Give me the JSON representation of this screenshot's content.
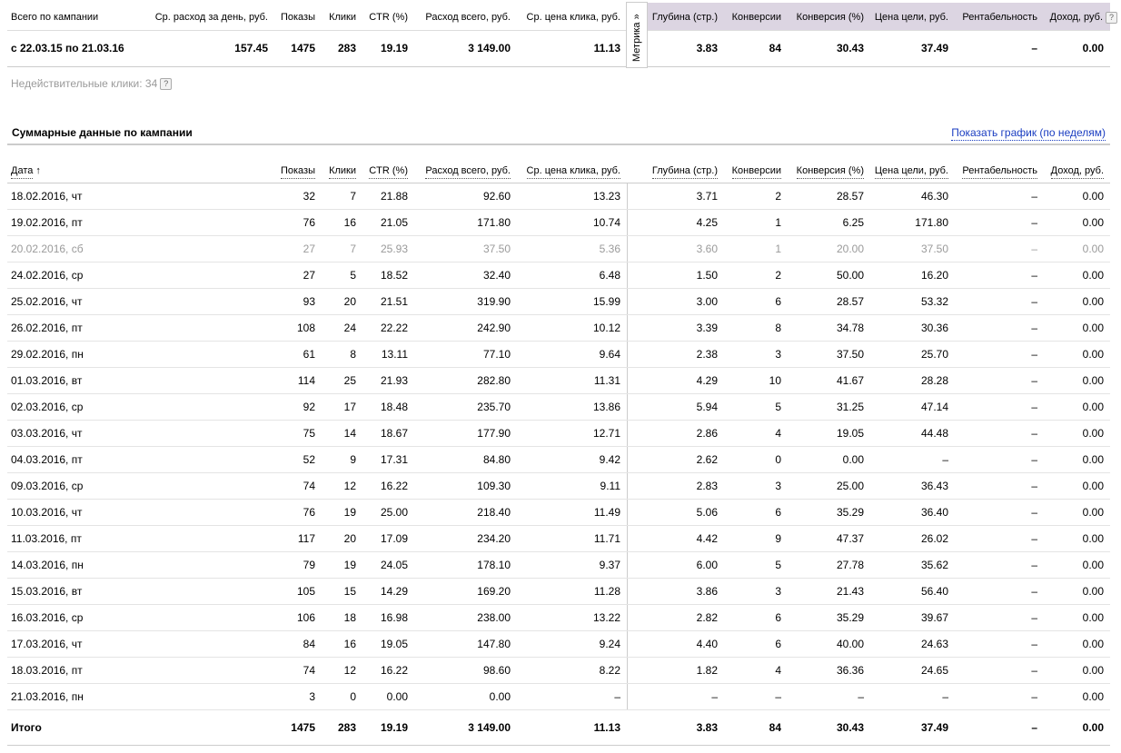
{
  "summary": {
    "headers": [
      "Всего по кампании",
      "Ср. расход за день, руб.",
      "Показы",
      "Клики",
      "CTR (%)",
      "Расход всего, руб.",
      "Ср. цена клика, руб.",
      "Глубина (стр.)",
      "Конверсии",
      "Конверсия (%)",
      "Цена цели, руб.",
      "Рентабельность",
      "Доход, руб."
    ],
    "help": "?",
    "metrika": "Метрика »",
    "row": [
      "с 22.03.15 по 21.03.16",
      "157.45",
      "1475",
      "283",
      "19.19",
      "3 149.00",
      "11.13",
      "3.83",
      "84",
      "30.43",
      "37.49",
      "–",
      "0.00"
    ],
    "invalid_clicks": "Недействительные клики: 34"
  },
  "details": {
    "title": "Суммарные данные по кампании",
    "chart_link": "Показать график (по неделям)",
    "sort_arrow": "↑",
    "headers": [
      "Дата",
      "Показы",
      "Клики",
      "CTR (%)",
      "Расход всего, руб.",
      "Ср. цена клика, руб.",
      "Глубина (стр.)",
      "Конверсии",
      "Конверсия (%)",
      "Цена цели, руб.",
      "Рентабельность",
      "Доход, руб."
    ],
    "rows": [
      {
        "cells": [
          "18.02.2016, чт",
          "32",
          "7",
          "21.88",
          "92.60",
          "13.23",
          "3.71",
          "2",
          "28.57",
          "46.30",
          "–",
          "0.00"
        ]
      },
      {
        "cells": [
          "19.02.2016, пт",
          "76",
          "16",
          "21.05",
          "171.80",
          "10.74",
          "4.25",
          "1",
          "6.25",
          "171.80",
          "–",
          "0.00"
        ]
      },
      {
        "cells": [
          "20.02.2016, сб",
          "27",
          "7",
          "25.93",
          "37.50",
          "5.36",
          "3.60",
          "1",
          "20.00",
          "37.50",
          "–",
          "0.00"
        ],
        "style": "muted"
      },
      {
        "cells": [
          "24.02.2016, ср",
          "27",
          "5",
          "18.52",
          "32.40",
          "6.48",
          "1.50",
          "2",
          "50.00",
          "16.20",
          "–",
          "0.00"
        ]
      },
      {
        "cells": [
          "25.02.2016, чт",
          "93",
          "20",
          "21.51",
          "319.90",
          "15.99",
          "3.00",
          "6",
          "28.57",
          "53.32",
          "–",
          "0.00"
        ]
      },
      {
        "cells": [
          "26.02.2016, пт",
          "108",
          "24",
          "22.22",
          "242.90",
          "10.12",
          "3.39",
          "8",
          "34.78",
          "30.36",
          "–",
          "0.00"
        ]
      },
      {
        "cells": [
          "29.02.2016, пн",
          "61",
          "8",
          "13.11",
          "77.10",
          "9.64",
          "2.38",
          "3",
          "37.50",
          "25.70",
          "–",
          "0.00"
        ]
      },
      {
        "cells": [
          "01.03.2016, вт",
          "114",
          "25",
          "21.93",
          "282.80",
          "11.31",
          "4.29",
          "10",
          "41.67",
          "28.28",
          "–",
          "0.00"
        ]
      },
      {
        "cells": [
          "02.03.2016, ср",
          "92",
          "17",
          "18.48",
          "235.70",
          "13.86",
          "5.94",
          "5",
          "31.25",
          "47.14",
          "–",
          "0.00"
        ]
      },
      {
        "cells": [
          "03.03.2016, чт",
          "75",
          "14",
          "18.67",
          "177.90",
          "12.71",
          "2.86",
          "4",
          "19.05",
          "44.48",
          "–",
          "0.00"
        ]
      },
      {
        "cells": [
          "04.03.2016, пт",
          "52",
          "9",
          "17.31",
          "84.80",
          "9.42",
          "2.62",
          "0",
          "0.00",
          "–",
          "–",
          "0.00"
        ]
      },
      {
        "cells": [
          "09.03.2016, ср",
          "74",
          "12",
          "16.22",
          "109.30",
          "9.11",
          "2.83",
          "3",
          "25.00",
          "36.43",
          "–",
          "0.00"
        ]
      },
      {
        "cells": [
          "10.03.2016, чт",
          "76",
          "19",
          "25.00",
          "218.40",
          "11.49",
          "5.06",
          "6",
          "35.29",
          "36.40",
          "–",
          "0.00"
        ]
      },
      {
        "cells": [
          "11.03.2016, пт",
          "117",
          "20",
          "17.09",
          "234.20",
          "11.71",
          "4.42",
          "9",
          "47.37",
          "26.02",
          "–",
          "0.00"
        ]
      },
      {
        "cells": [
          "14.03.2016, пн",
          "79",
          "19",
          "24.05",
          "178.10",
          "9.37",
          "6.00",
          "5",
          "27.78",
          "35.62",
          "–",
          "0.00"
        ]
      },
      {
        "cells": [
          "15.03.2016, вт",
          "105",
          "15",
          "14.29",
          "169.20",
          "11.28",
          "3.86",
          "3",
          "21.43",
          "56.40",
          "–",
          "0.00"
        ]
      },
      {
        "cells": [
          "16.03.2016, ср",
          "106",
          "18",
          "16.98",
          "238.00",
          "13.22",
          "2.82",
          "6",
          "35.29",
          "39.67",
          "–",
          "0.00"
        ]
      },
      {
        "cells": [
          "17.03.2016, чт",
          "84",
          "16",
          "19.05",
          "147.80",
          "9.24",
          "4.40",
          "6",
          "40.00",
          "24.63",
          "–",
          "0.00"
        ]
      },
      {
        "cells": [
          "18.03.2016, пт",
          "74",
          "12",
          "16.22",
          "98.60",
          "8.22",
          "1.82",
          "4",
          "36.36",
          "24.65",
          "–",
          "0.00"
        ]
      },
      {
        "cells": [
          "21.03.2016, пн",
          "3",
          "0",
          "0.00",
          "0.00",
          "–",
          "–",
          "–",
          "–",
          "–",
          "–",
          "0.00"
        ]
      }
    ],
    "total": [
      "Итого",
      "1475",
      "283",
      "19.19",
      "3 149.00",
      "11.13",
      "3.83",
      "84",
      "30.43",
      "37.49",
      "–",
      "0.00"
    ]
  }
}
